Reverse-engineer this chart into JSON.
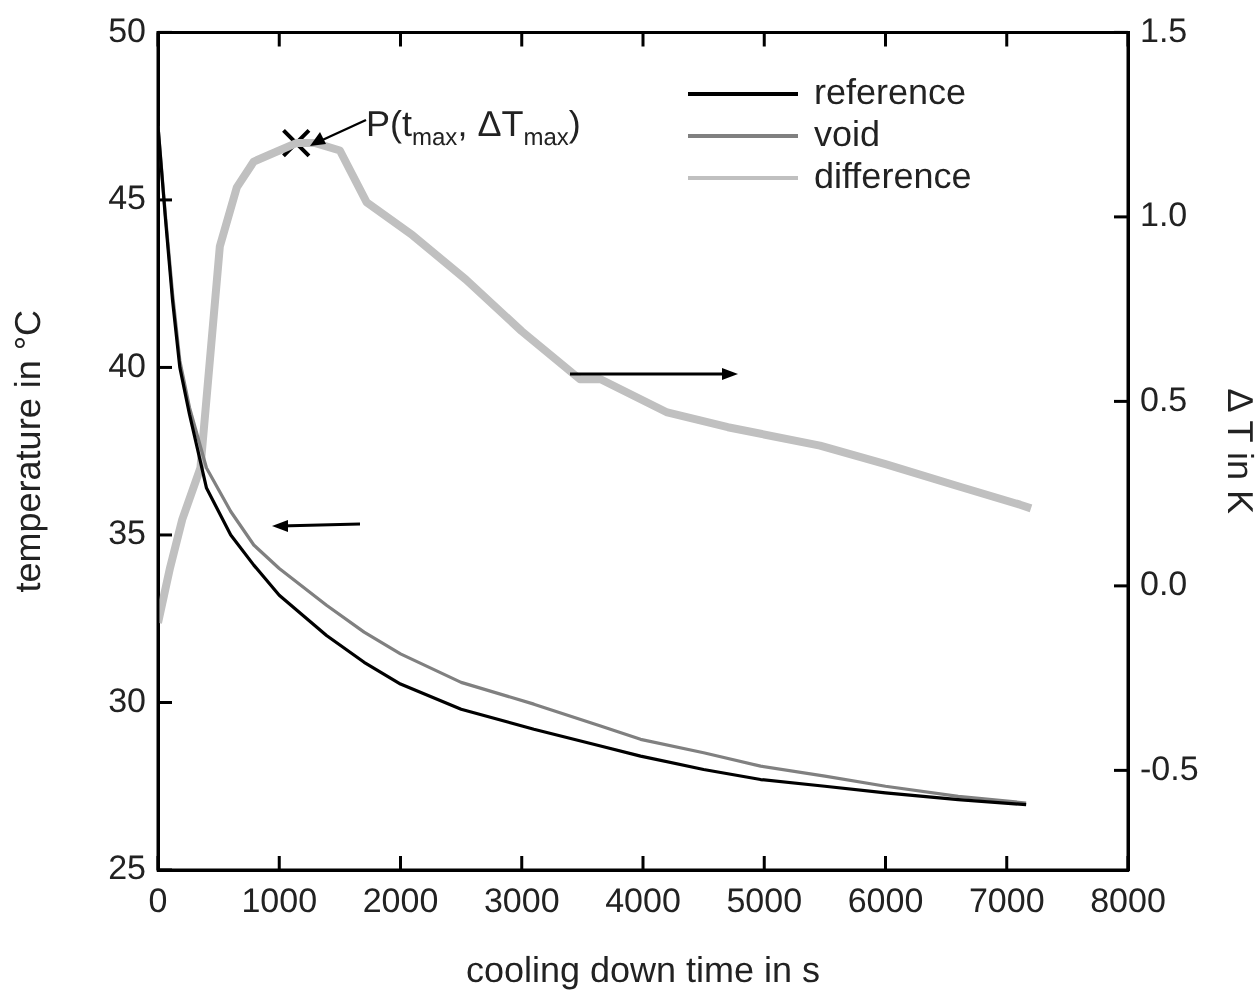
{
  "chart_data": {
    "type": "line",
    "xlabel": "cooling down time in s",
    "ylabel": "temperature in °C",
    "y2label": "Δ T in K",
    "xlim": [
      0,
      8000
    ],
    "xticks": [
      0,
      1000,
      2000,
      3000,
      4000,
      5000,
      6000,
      7000,
      8000
    ],
    "ylim": [
      25,
      50
    ],
    "yticks": [
      25,
      30,
      35,
      40,
      45,
      50
    ],
    "y2lim": [
      -0.77,
      1.5
    ],
    "y2ticks": [
      {
        "value": -0.5,
        "label": "-0.5"
      },
      {
        "value": 0,
        "label": "0.0"
      },
      {
        "value": 0.5,
        "label": "0.5"
      },
      {
        "value": 1,
        "label": "1.0"
      },
      {
        "value": 1.5,
        "label": "1.5"
      }
    ],
    "legend": "top right",
    "line_style": "solid",
    "series": [
      {
        "name": "reference",
        "color": "#000000",
        "x": [
          0,
          60,
          120,
          180,
          260,
          400,
          600,
          790,
          1000,
          1390,
          1700,
          2000,
          2500,
          3100,
          3650,
          3980,
          4500,
          4970,
          5500,
          6000,
          6600,
          7160
        ],
        "values": [
          47.2,
          44.5,
          42.0,
          40.0,
          38.6,
          36.4,
          35.0,
          34.1,
          33.2,
          32.0,
          31.2,
          30.55,
          29.8,
          29.2,
          28.7,
          28.4,
          28.0,
          27.7,
          27.5,
          27.3,
          27.1,
          26.95
        ]
      },
      {
        "name": "void",
        "color": "#808080",
        "x": [
          0,
          60,
          120,
          180,
          260,
          400,
          600,
          790,
          1000,
          1390,
          1700,
          2000,
          2500,
          3100,
          3650,
          3980,
          4500,
          4970,
          5500,
          6000,
          6600,
          7160
        ],
        "values": [
          47.2,
          44.6,
          42.2,
          40.2,
          38.8,
          37.0,
          35.7,
          34.7,
          34.0,
          32.9,
          32.1,
          31.45,
          30.6,
          29.95,
          29.3,
          28.9,
          28.5,
          28.1,
          27.8,
          27.5,
          27.2,
          27.0
        ]
      },
      {
        "name": "difference",
        "color": "#c0c0c0",
        "axis": "y2",
        "x": [
          0,
          100,
          200,
          350,
          510,
          650,
          790,
          1000,
          1140,
          1300,
          1500,
          1720,
          2100,
          2540,
          3000,
          3480,
          3650,
          4200,
          4700,
          5460,
          6000,
          6600,
          7110,
          7200
        ],
        "values": [
          -0.1,
          0.05,
          0.18,
          0.32,
          0.92,
          1.08,
          1.15,
          1.18,
          1.2,
          1.2,
          1.18,
          1.04,
          0.95,
          0.83,
          0.69,
          0.56,
          0.56,
          0.47,
          0.43,
          0.38,
          0.33,
          0.27,
          0.22,
          0.21
        ]
      },
      {
        "type": "scatter",
        "color": "#000000",
        "axis": "y2",
        "marker": "cross",
        "x": [
          1140
        ],
        "values": [
          1.2
        ]
      }
    ],
    "annotations": [
      "P(t$_{max}$, ΔT$_{max}$)"
    ]
  }
}
